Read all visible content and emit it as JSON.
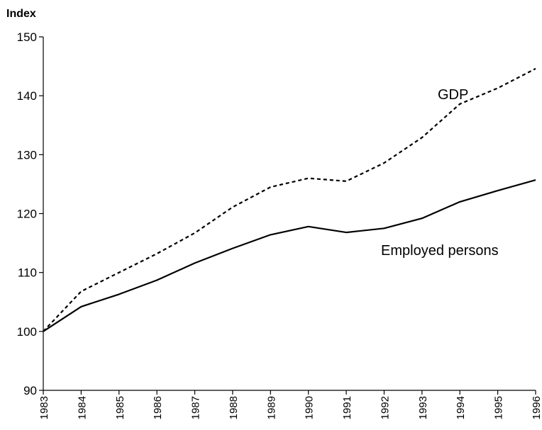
{
  "chart_data": {
    "type": "line",
    "title": "",
    "ylabel": "Index",
    "xlabel": "",
    "categories": [
      "1983",
      "1984",
      "1985",
      "1986",
      "1987",
      "1988",
      "1989",
      "1990",
      "1991",
      "1992",
      "1993",
      "1994",
      "1995",
      "1996"
    ],
    "ylim": [
      90,
      150
    ],
    "yticks": [
      90,
      100,
      110,
      120,
      130,
      140,
      150
    ],
    "grid": false,
    "legend": "none",
    "series": [
      {
        "name": "GDP",
        "line_style": "dotted",
        "color": "#000000",
        "values": [
          100,
          106.8,
          110,
          113.2,
          116.7,
          121.1,
          124.5,
          126,
          125.5,
          128.6,
          132.9,
          138.6,
          141.3,
          144.6
        ]
      },
      {
        "name": "Employed persons",
        "line_style": "solid",
        "color": "#000000",
        "values": [
          100,
          104.2,
          106.3,
          108.7,
          111.6,
          114.1,
          116.4,
          117.8,
          116.8,
          117.5,
          119.2,
          122,
          123.9,
          125.7
        ]
      }
    ]
  }
}
